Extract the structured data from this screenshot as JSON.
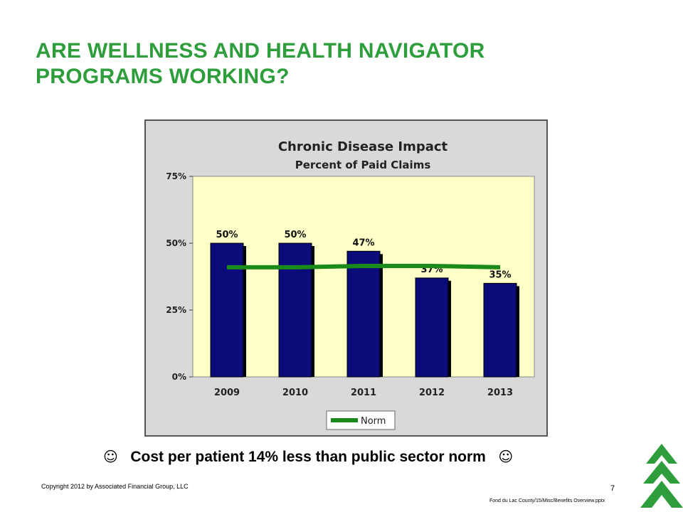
{
  "slide": {
    "title_line1": "ARE WELLNESS AND HEALTH NAVIGATOR",
    "title_line2": "PROGRAMS WORKING?",
    "footnote": "Cost per patient 14% less than public sector norm",
    "smiley_glyph": "☺",
    "copyright": "Copyright 2012 by Associated Financial Group, LLC",
    "page_number": "7",
    "file_path": "Fond du Lac County/15/Misc/Benefits  Overview.pptx"
  },
  "colors": {
    "title": "#2e9d3c",
    "bar": "#0b0b7a",
    "norm": "#1a8a1a",
    "plot_bg": "#ffffc8",
    "chart_bg": "#d9d9d9",
    "logo": "#2e9d3c"
  },
  "chart_data": {
    "type": "bar",
    "title": "Chronic Disease Impact",
    "subtitle": "Percent of Paid Claims",
    "categories": [
      "2009",
      "2010",
      "2011",
      "2012",
      "2013"
    ],
    "series": [
      {
        "values": [
          50,
          50,
          47,
          37,
          35
        ],
        "labels": [
          "50%",
          "50%",
          "47%",
          "37%",
          "35%"
        ]
      },
      {
        "name": "Norm",
        "type": "line",
        "values": [
          41,
          41,
          41.5,
          41.5,
          41
        ]
      }
    ],
    "ylim": [
      0,
      75
    ],
    "yticks": [
      0,
      25,
      50,
      75
    ],
    "ytick_labels": [
      "0%",
      "25%",
      "50%",
      "75%"
    ],
    "grid": false,
    "legend": {
      "position": "bottom-left",
      "entries": [
        "Norm"
      ]
    }
  }
}
